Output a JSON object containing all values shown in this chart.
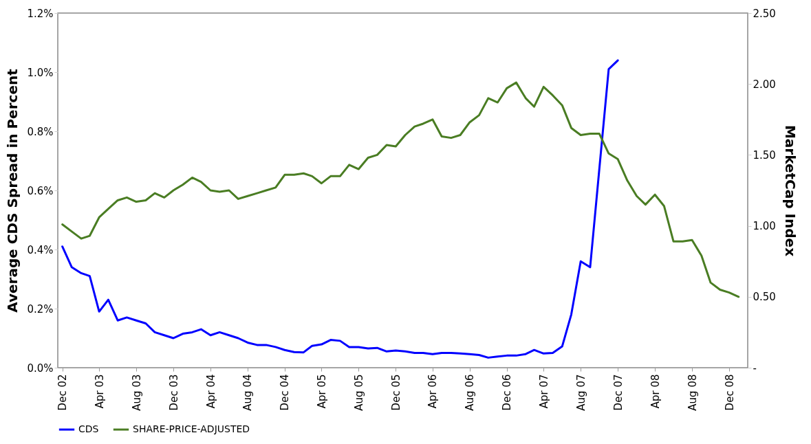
{
  "chart_data": {
    "type": "line",
    "ylabel": "Average CDS Spread in Percent",
    "y2label": "MarketCap Index",
    "x": [
      "2002-12",
      "2003-01",
      "2003-02",
      "2003-03",
      "2003-04",
      "2003-05",
      "2003-06",
      "2003-07",
      "2003-08",
      "2003-09",
      "2003-10",
      "2003-11",
      "2003-12",
      "2004-01",
      "2004-02",
      "2004-03",
      "2004-04",
      "2004-05",
      "2004-06",
      "2004-07",
      "2004-08",
      "2004-09",
      "2004-10",
      "2004-11",
      "2004-12",
      "2005-01",
      "2005-02",
      "2005-03",
      "2005-04",
      "2005-05",
      "2005-06",
      "2005-07",
      "2005-08",
      "2005-09",
      "2005-10",
      "2005-11",
      "2005-12",
      "2006-01",
      "2006-02",
      "2006-03",
      "2006-04",
      "2006-05",
      "2006-06",
      "2006-07",
      "2006-08",
      "2006-09",
      "2006-10",
      "2006-11",
      "2006-12",
      "2007-01",
      "2007-02",
      "2007-03",
      "2007-04",
      "2007-05",
      "2007-06",
      "2007-07",
      "2007-08",
      "2007-09",
      "2007-10",
      "2007-11",
      "2007-12",
      "2008-01",
      "2008-02",
      "2008-03",
      "2008-04",
      "2008-05",
      "2008-06",
      "2008-07",
      "2008-08",
      "2008-09",
      "2008-10",
      "2008-11",
      "2008-12",
      "2009-01"
    ],
    "series": [
      {
        "name": "CDS",
        "color": "#0000ff",
        "axis": "y",
        "values": [
          0.41,
          0.34,
          0.32,
          0.31,
          0.19,
          0.23,
          0.16,
          0.17,
          0.16,
          0.15,
          0.12,
          0.11,
          0.1,
          0.115,
          0.12,
          0.13,
          0.11,
          0.12,
          0.11,
          0.1,
          0.085,
          0.077,
          0.077,
          0.07,
          0.06,
          0.053,
          0.052,
          0.074,
          0.079,
          0.094,
          0.091,
          0.07,
          0.07,
          0.065,
          0.067,
          0.055,
          0.058,
          0.055,
          0.05,
          0.05,
          0.046,
          0.05,
          0.05,
          0.048,
          0.046,
          0.043,
          0.034,
          0.038,
          0.041,
          0.041,
          0.046,
          0.06,
          0.048,
          0.05,
          0.072,
          0.18,
          0.36,
          0.34,
          0.67,
          1.01,
          1.04,
          null,
          null,
          null,
          null,
          null,
          null,
          null,
          null,
          null,
          null,
          null,
          null,
          null
        ]
      },
      {
        "name": "SHARE-PRICE-ADJUSTED",
        "color": "#4a7d23",
        "axis": "y2",
        "values": [
          1.01,
          0.96,
          0.91,
          0.93,
          1.06,
          1.12,
          1.18,
          1.2,
          1.17,
          1.18,
          1.23,
          1.2,
          1.25,
          1.29,
          1.34,
          1.31,
          1.25,
          1.24,
          1.25,
          1.19,
          1.21,
          1.23,
          1.25,
          1.27,
          1.36,
          1.36,
          1.37,
          1.35,
          1.3,
          1.35,
          1.35,
          1.43,
          1.4,
          1.48,
          1.5,
          1.57,
          1.56,
          1.64,
          1.7,
          1.72,
          1.75,
          1.63,
          1.62,
          1.64,
          1.73,
          1.78,
          1.9,
          1.87,
          1.97,
          2.01,
          1.9,
          1.84,
          1.98,
          1.92,
          1.85,
          1.69,
          1.64,
          1.65,
          1.65,
          1.51,
          1.47,
          1.32,
          1.21,
          1.15,
          1.22,
          1.14,
          0.89,
          0.89,
          0.9,
          0.79,
          0.6,
          0.55,
          0.53,
          0.5
        ]
      }
    ],
    "xlim": [
      "2002-11-16",
      "2009-01-31"
    ],
    "xticks": [
      {
        "value": "2002-12",
        "label": "Dec 02"
      },
      {
        "value": "2003-04",
        "label": "Apr 03"
      },
      {
        "value": "2003-08",
        "label": "Aug 03"
      },
      {
        "value": "2003-12",
        "label": "Dec 03"
      },
      {
        "value": "2004-04",
        "label": "Apr 04"
      },
      {
        "value": "2004-08",
        "label": "Aug 04"
      },
      {
        "value": "2004-12",
        "label": "Dec 04"
      },
      {
        "value": "2005-04",
        "label": "Apr 05"
      },
      {
        "value": "2005-08",
        "label": "Aug 05"
      },
      {
        "value": "2005-12",
        "label": "Dec 05"
      },
      {
        "value": "2006-04",
        "label": "Apr 06"
      },
      {
        "value": "2006-08",
        "label": "Aug 06"
      },
      {
        "value": "2006-12",
        "label": "Dec 06"
      },
      {
        "value": "2007-04",
        "label": "Apr 07"
      },
      {
        "value": "2007-08",
        "label": "Aug 07"
      },
      {
        "value": "2007-12",
        "label": "Dec 07"
      },
      {
        "value": "2008-04",
        "label": "Apr 08"
      },
      {
        "value": "2008-08",
        "label": "Aug 08"
      },
      {
        "value": "2008-12",
        "label": "Dec 08"
      }
    ],
    "ylim": [
      0,
      1.2
    ],
    "yticks": [
      {
        "value": 0,
        "label": "0.0%"
      },
      {
        "value": 0.2,
        "label": "0.2%"
      },
      {
        "value": 0.4,
        "label": "0.4%"
      },
      {
        "value": 0.6,
        "label": "0.6%"
      },
      {
        "value": 0.8,
        "label": "0.8%"
      },
      {
        "value": 1.0,
        "label": "1.0%"
      },
      {
        "value": 1.2,
        "label": "1.2%"
      }
    ],
    "y2lim": [
      0,
      2.5
    ],
    "y2ticks": [
      {
        "value": 0,
        "label": "-"
      },
      {
        "value": 0.5,
        "label": "0.50"
      },
      {
        "value": 1.0,
        "label": "1.00"
      },
      {
        "value": 1.5,
        "label": "1.50"
      },
      {
        "value": 2.0,
        "label": "2.00"
      },
      {
        "value": 2.5,
        "label": "2.50"
      }
    ],
    "grid": false,
    "legend": "bottom"
  }
}
